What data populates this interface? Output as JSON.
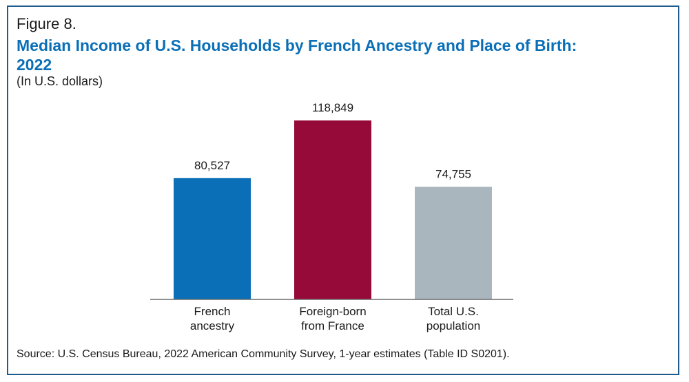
{
  "figure_label": "Figure 8.",
  "source": "Source: U.S. Census Bureau, 2022 American Community Survey, 1-year estimates (Table ID S0201).",
  "chart_data": {
    "type": "bar",
    "title": "Median Income of U.S. Households by French Ancestry and Place of Birth: 2022",
    "subtitle": "(In U.S. dollars)",
    "categories": [
      [
        "French",
        "ancestry"
      ],
      [
        "Foreign-born",
        "from France"
      ],
      [
        "Total U.S.",
        "population"
      ]
    ],
    "values": [
      80527,
      118849,
      74755
    ],
    "value_labels": [
      "80,527",
      "118,849",
      "74,755"
    ],
    "colors": [
      "#0a6fb7",
      "#960a3a",
      "#a9b6bd"
    ],
    "ylim": [
      0,
      118849
    ],
    "grid": false,
    "legend": "none"
  }
}
